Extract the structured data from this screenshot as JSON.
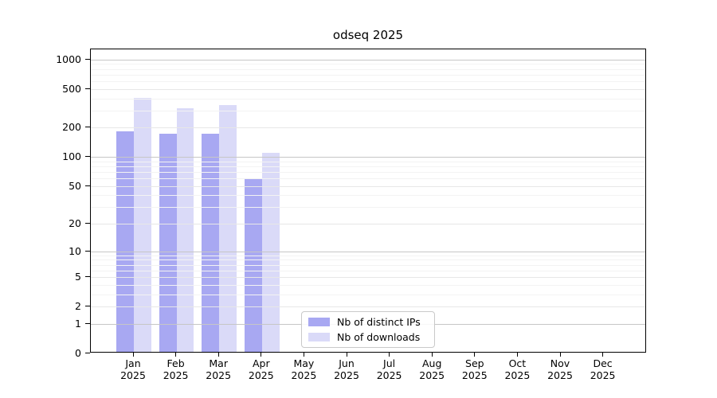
{
  "chart_data": {
    "type": "bar",
    "title": "odseq 2025",
    "x_tick_months": [
      "Jan",
      "Feb",
      "Mar",
      "Apr",
      "May",
      "Jun",
      "Jul",
      "Aug",
      "Sep",
      "Oct",
      "Nov",
      "Dec"
    ],
    "x_tick_year": "2025",
    "series": [
      {
        "name": "Nb of distinct IPs",
        "color": "#a8a8f2",
        "values": [
          180,
          168,
          170,
          57,
          0,
          0,
          0,
          0,
          0,
          0,
          0,
          0
        ]
      },
      {
        "name": "Nb of downloads",
        "color": "#dadaf8",
        "values": [
          395,
          310,
          330,
          108,
          0,
          0,
          0,
          0,
          0,
          0,
          0,
          0
        ]
      }
    ],
    "yscale": "log10(value+1)",
    "ylim": [
      0,
      1100
    ],
    "yticks": [
      1000,
      500,
      200,
      100,
      50,
      20,
      10,
      5,
      2,
      1,
      0
    ],
    "minor_gridline_values": [
      3,
      4,
      6,
      7,
      8,
      9,
      30,
      40,
      60,
      70,
      80,
      90,
      300,
      400,
      600,
      700,
      800,
      900
    ],
    "decade_gridline_values": [
      1,
      10,
      100,
      1000
    ],
    "grid": true,
    "grid_above_bars": true,
    "legend_position": "lower center"
  }
}
